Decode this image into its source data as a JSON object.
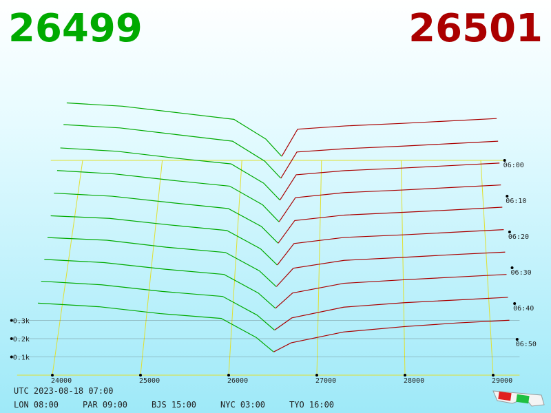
{
  "chart_data": {
    "type": "depth3d",
    "bid_label": "26499",
    "ask_label": "26501",
    "bid_color": "#00aa00",
    "ask_color": "#aa0000",
    "bid_prices": [
      23800,
      24500,
      25200,
      25900,
      26300,
      26499
    ],
    "ask_prices": [
      26501,
      26700,
      27300,
      28000,
      28600,
      29200
    ],
    "snapshots": [
      {
        "time": 0,
        "bid": [
          350,
          330,
          290,
          250,
          130,
          25
        ],
        "ask": [
          25,
          190,
          210,
          225,
          240,
          255
        ]
      },
      {
        "time": 6,
        "bid": [
          345,
          325,
          285,
          245,
          125,
          22
        ],
        "ask": [
          22,
          180,
          200,
          215,
          230,
          245
        ]
      },
      {
        "time": 12,
        "bid": [
          330,
          310,
          270,
          235,
          120,
          20
        ],
        "ask": [
          20,
          170,
          195,
          210,
          225,
          240
        ]
      },
      {
        "time": 18,
        "bid": [
          320,
          300,
          262,
          228,
          118,
          18
        ],
        "ask": [
          18,
          160,
          190,
          205,
          220,
          235
        ]
      },
      {
        "time": 24,
        "bid": [
          310,
          292,
          255,
          220,
          115,
          18
        ],
        "ask": [
          18,
          150,
          182,
          198,
          212,
          228
        ]
      },
      {
        "time": 30,
        "bid": [
          300,
          285,
          248,
          215,
          110,
          16
        ],
        "ask": [
          16,
          140,
          175,
          190,
          205,
          220
        ]
      },
      {
        "time": 36,
        "bid": [
          295,
          280,
          240,
          210,
          105,
          15
        ],
        "ask": [
          15,
          120,
          165,
          182,
          198,
          212
        ]
      },
      {
        "time": 42,
        "bid": [
          290,
          272,
          235,
          205,
          100,
          14
        ],
        "ask": [
          14,
          100,
          155,
          175,
          190,
          205
        ]
      },
      {
        "time": 48,
        "bid": [
          285,
          265,
          228,
          200,
          95,
          12
        ],
        "ask": [
          12,
          80,
          140,
          165,
          180,
          195
        ]
      },
      {
        "time": 54,
        "bid": [
          280,
          260,
          222,
          195,
          90,
          10
        ],
        "ask": [
          10,
          60,
          120,
          150,
          170,
          185
        ]
      }
    ],
    "xticks": [
      24000,
      25000,
      26000,
      27000,
      28000,
      29000
    ],
    "xlim": [
      23600,
      29300
    ],
    "tlim": [
      0,
      60
    ],
    "tticks": [
      {
        "value": 0,
        "label": "06:00"
      },
      {
        "value": 10,
        "label": "06:10"
      },
      {
        "value": 20,
        "label": "06:20"
      },
      {
        "value": 30,
        "label": "06:30"
      },
      {
        "value": 40,
        "label": "06:40"
      },
      {
        "value": 50,
        "label": "06:50"
      }
    ],
    "vticks": [
      {
        "value": 100,
        "label": "0.1k"
      },
      {
        "value": 200,
        "label": "0.2k"
      },
      {
        "value": 300,
        "label": "0.3k"
      }
    ],
    "utc": "UTC 2023-08-18 07:00",
    "clocks": [
      "LON 08:00",
      "PAR 09:00",
      "BJS 15:00",
      "NYC 03:00",
      "TYO 16:00"
    ]
  }
}
